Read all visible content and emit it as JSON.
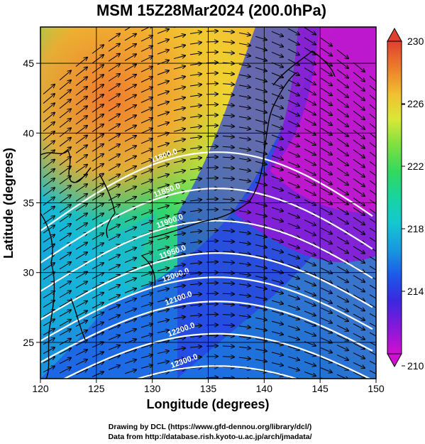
{
  "title": "MSM 15Z28Mar2024 (200.0hPa)",
  "xlabel": "Longitude (degrees)",
  "ylabel": "Latitude  (degrees)",
  "credits": [
    "Drawing by DCL (https://www.gfd-dennou.org/library/dcl/)",
    "Data from http://database.rish.kyoto-u.ac.jp/arch/jmadata/"
  ],
  "map": {
    "lon_range": [
      120,
      150
    ],
    "lat_range": [
      22.4,
      47.6
    ],
    "lon_ticks": [
      120,
      125,
      130,
      135,
      140,
      145,
      150
    ],
    "lat_ticks": [
      25,
      30,
      35,
      40,
      45
    ],
    "gridlines": true
  },
  "colorbar": {
    "range": [
      210,
      230
    ],
    "ticks": [
      210,
      214,
      218,
      222,
      226,
      230
    ],
    "palette": [
      "#d010d0",
      "#8a18d8",
      "#4a24e0",
      "#1c58e8",
      "#1896e0",
      "#14c8d0",
      "#18d4a0",
      "#30d860",
      "#80e040",
      "#c8e838",
      "#f0d830",
      "#f4a030",
      "#ec6a2c",
      "#e04030"
    ]
  },
  "contours": [
    {
      "label": "11800.0"
    },
    {
      "label": "11850.0"
    },
    {
      "label": "11900.0"
    },
    {
      "label": "11950.0"
    },
    {
      "label": "12000.0"
    },
    {
      "label": "12100.0"
    },
    {
      "label": "12200.0"
    },
    {
      "label": "12300.0"
    },
    {
      "label": "12400.0"
    }
  ]
}
